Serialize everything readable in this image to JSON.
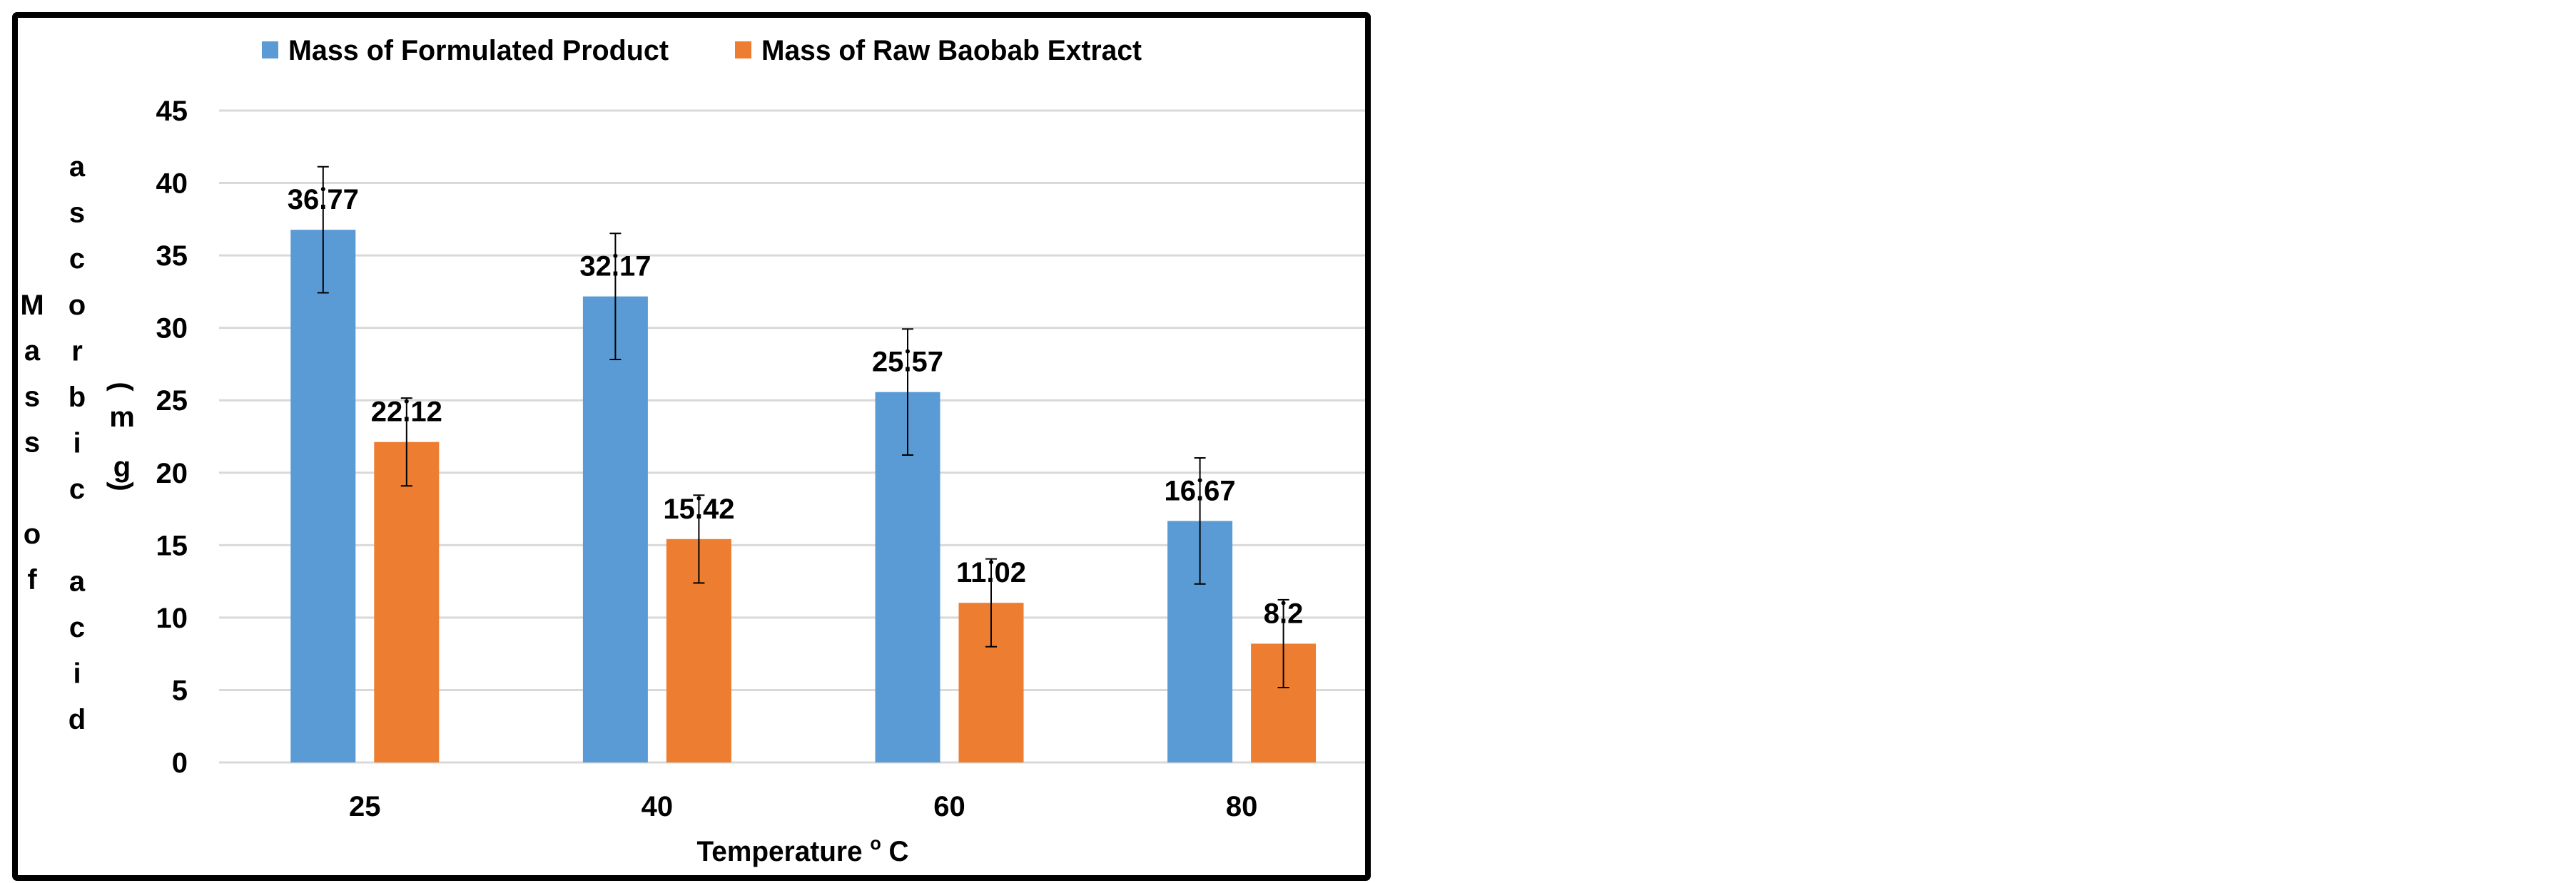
{
  "chart_data": {
    "type": "bar",
    "title": "",
    "categories": [
      "25",
      "40",
      "60",
      "80"
    ],
    "series": [
      {
        "name": "Mass of Formulated Product",
        "values": [
          36.77,
          32.17,
          25.57,
          16.67
        ],
        "labels": [
          "36.77",
          "32.17",
          "25.57",
          "16.67"
        ],
        "error": [
          4.35,
          4.35,
          4.35,
          4.35
        ],
        "color": "#5B9BD5"
      },
      {
        "name": "Mass of Raw Baobab Extract",
        "values": [
          22.12,
          15.42,
          11.02,
          8.2
        ],
        "labels": [
          "22.12",
          "15.42",
          "11.02",
          "8.2"
        ],
        "error": [
          3.03,
          3.03,
          3.03,
          3.03
        ],
        "color": "#ED7D31"
      }
    ],
    "xlabel": {
      "text": "Temperature ",
      "degree": "o",
      "unit": " C"
    },
    "ylabel": {
      "col1": [
        "M",
        "a",
        "s",
        "s",
        "",
        "o",
        "f"
      ],
      "col2": [
        "a",
        "s",
        "c",
        "o",
        "r",
        "b",
        "i",
        "c",
        "",
        "a",
        "c",
        "i",
        "d"
      ],
      "col3": [
        "(",
        "m",
        "g",
        ")"
      ]
    },
    "ylim": [
      0,
      45
    ],
    "yticks": [
      "0",
      "5",
      "10",
      "15",
      "20",
      "25",
      "30",
      "35",
      "40",
      "45"
    ],
    "grid": true,
    "legend": "top",
    "gridline_color": "#D9D9D9",
    "frame_color": "#000000"
  }
}
